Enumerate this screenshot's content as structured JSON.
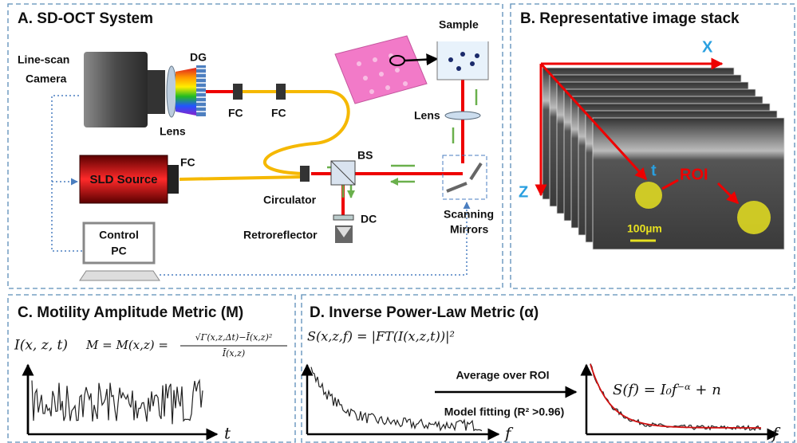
{
  "panel_a": {
    "title": "A. SD-OCT System",
    "camera": [
      "Line-scan",
      "Camera"
    ],
    "lens_1": "Lens",
    "dg": "DG",
    "fc_1": "FC",
    "fc_2": "FC",
    "sample": "Sample",
    "lens_2": "Lens",
    "sld": "SLD Source",
    "fc_3": "FC",
    "bs": "BS",
    "circulator": "Circulator",
    "dc": "DC",
    "retroreflector": "Retroreflector",
    "scanning": [
      "Scanning",
      "Mirrors"
    ],
    "pc": [
      "Control",
      "PC"
    ]
  },
  "panel_b": {
    "title": "B. Representative image stack",
    "x_axis": "X",
    "z_axis": "Z",
    "t_axis": "t",
    "roi": "ROI",
    "scale": "100µm"
  },
  "panel_c": {
    "title": "C. Motility Amplitude Metric (M)",
    "intensity": "I(x, z, t)",
    "metric": "M = M(x,z) =",
    "numerator": "√Γ(x,z,Δt)−Ī(x,z)²",
    "denominator": "Ī(x,z)",
    "x_axis": "t"
  },
  "panel_d": {
    "title": "D. Inverse Power-Law Metric (α)",
    "spectrum": "S(x,z,f) = |FT(I(x,z,t))|²",
    "step_1": "Average over ROI",
    "step_2": "Model fitting (R² >0.96)",
    "model": "S(f) = I₀f⁻ᵅ + n",
    "x_axis_left": "f",
    "x_axis_right": "f"
  }
}
